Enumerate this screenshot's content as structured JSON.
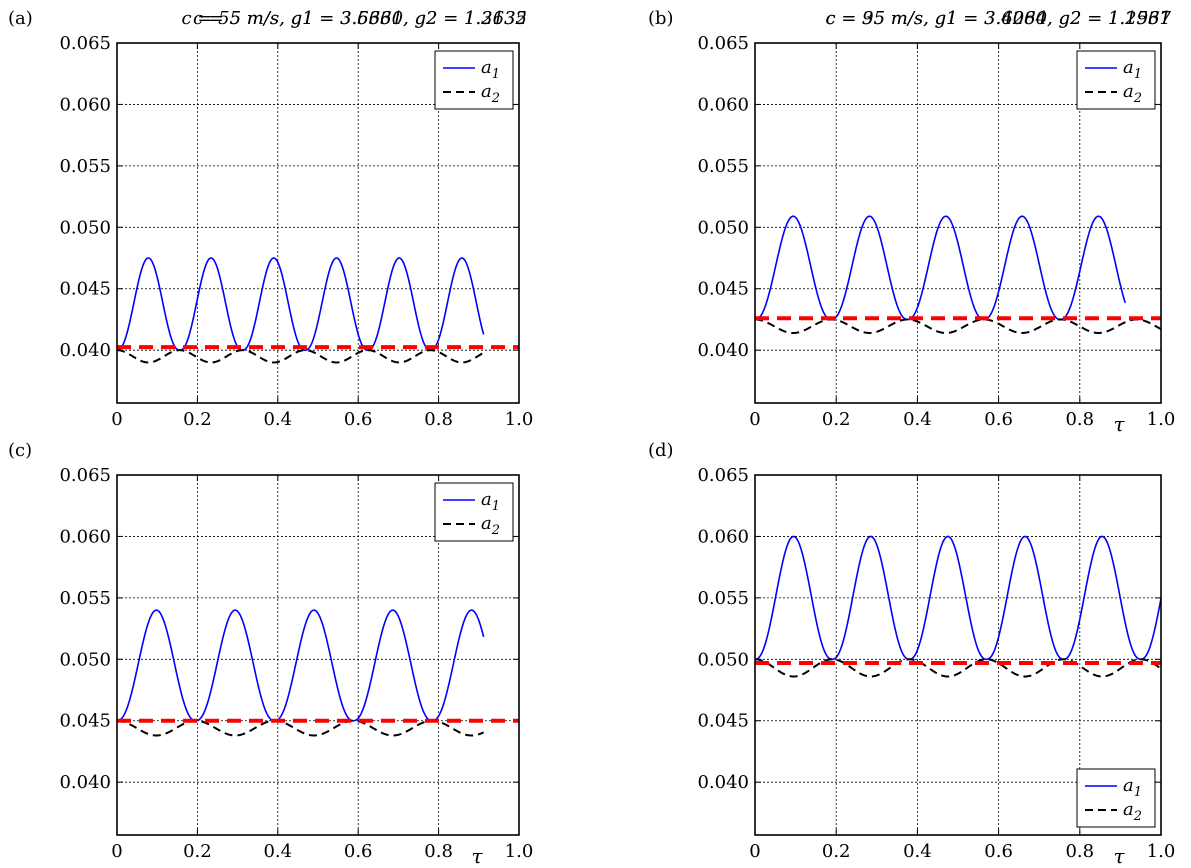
{
  "figure": {
    "x_axis_label": "τ",
    "panels_order": [
      "a",
      "b",
      "c",
      "d"
    ]
  },
  "colors": {
    "a1": "#0000ff",
    "a2": "#000000",
    "reference": "#ff0000",
    "grid": "#000000"
  },
  "chart_data": [
    {
      "panel": "(a)",
      "type": "line",
      "title": "c = 5 m/s,  g1 = 3.6331,  g2 = 1.3135",
      "xlabel": "",
      "xlim": [
        0,
        1.0
      ],
      "ylim": [
        0.0357,
        0.065
      ],
      "xticks": [
        "0",
        "0.2",
        "0.4",
        "0.6",
        "0.8",
        "1.0"
      ],
      "yticks": [
        "0.040",
        "0.045",
        "0.050",
        "0.055",
        "0.060",
        "0.065"
      ],
      "legend": [
        "a1",
        "a2"
      ],
      "legend_position": "top-right",
      "grid": true,
      "series": [
        {
          "name": "a1",
          "style": "solid",
          "x_max": 0.912,
          "period": 0.156,
          "phase": 0.0,
          "y_min": 0.04,
          "y_max": 0.0475
        },
        {
          "name": "a2",
          "style": "dashed",
          "x_max": 0.912,
          "period": 0.156,
          "phase": 0.0,
          "y_min": 0.039,
          "y_max": 0.04
        },
        {
          "style": "dashed-thick",
          "x": [
            0,
            1.0
          ],
          "y": [
            0.04025,
            0.04025
          ]
        }
      ]
    },
    {
      "panel": "(b)",
      "type": "line",
      "title": "c = 35 m/s,  g1 = 3.6064,  g2 = 1.2937",
      "xlabel": "τ",
      "xlim": [
        0,
        1.0
      ],
      "ylim": [
        0.0357,
        0.065
      ],
      "xticks": [
        "0",
        "0.2",
        "0.4",
        "0.6",
        "0.8",
        "1.0"
      ],
      "yticks": [
        "0.040",
        "0.045",
        "0.050",
        "0.055",
        "0.060",
        "0.065"
      ],
      "legend": [
        "a1",
        "a2"
      ],
      "legend_position": "top-right",
      "grid": true,
      "series": [
        {
          "name": "a1",
          "style": "solid",
          "x_max": 0.912,
          "period": 0.188,
          "phase": 0.0,
          "y_min": 0.0425,
          "y_max": 0.0509
        },
        {
          "name": "a2",
          "style": "dashed",
          "x_max": 1.0,
          "period": 0.188,
          "phase": 0.0,
          "y_min": 0.0414,
          "y_max": 0.0425
        },
        {
          "style": "dashed-thick",
          "x": [
            0,
            1.0
          ],
          "y": [
            0.0426,
            0.0426
          ]
        }
      ]
    },
    {
      "panel": "(c)",
      "type": "line",
      "title": "c = 55 m/s,  g1 = 3.5660,  g2 = 1.2632",
      "xlabel": "τ",
      "xlim": [
        0,
        1.0
      ],
      "ylim": [
        0.0357,
        0.065
      ],
      "xticks": [
        "0",
        "0.2",
        "0.4",
        "0.6",
        "0.8",
        "1.0"
      ],
      "yticks": [
        "0.040",
        "0.045",
        "0.050",
        "0.055",
        "0.060",
        "0.065"
      ],
      "legend": [
        "a1",
        "a2"
      ],
      "legend_position": "top-right",
      "grid": true,
      "series": [
        {
          "name": "a1",
          "style": "solid",
          "x_max": 0.912,
          "period": 0.196,
          "phase": 0.0,
          "y_min": 0.045,
          "y_max": 0.054
        },
        {
          "name": "a2",
          "style": "dashed",
          "x_max": 0.912,
          "period": 0.196,
          "phase": 0.0,
          "y_min": 0.0438,
          "y_max": 0.045
        },
        {
          "style": "dashed-thick",
          "x": [
            0,
            1.0
          ],
          "y": [
            0.045,
            0.045
          ]
        }
      ]
    },
    {
      "panel": "(d)",
      "type": "line",
      "title": "c = 95 m/s,  g1 = 3.4280,  g2 = 1.1561",
      "xlabel": "τ",
      "xlim": [
        0,
        1.0
      ],
      "ylim": [
        0.0357,
        0.065
      ],
      "xticks": [
        "0",
        "0.2",
        "0.4",
        "0.6",
        "0.8",
        "1.0"
      ],
      "yticks": [
        "0.040",
        "0.045",
        "0.050",
        "0.055",
        "0.060",
        "0.065"
      ],
      "legend": [
        "a1",
        "a2"
      ],
      "legend_position": "bottom-right",
      "grid": true,
      "series": [
        {
          "name": "a1",
          "style": "solid",
          "x_max": 1.0,
          "period": 0.19,
          "phase": 0.0,
          "y_min": 0.05,
          "y_max": 0.06
        },
        {
          "name": "a2",
          "style": "dashed",
          "x_max": 1.0,
          "period": 0.19,
          "phase": 0.0,
          "y_min": 0.0486,
          "y_max": 0.05
        },
        {
          "style": "dashed-thick",
          "x": [
            0,
            1.0
          ],
          "y": [
            0.0497,
            0.0497
          ]
        }
      ]
    }
  ]
}
